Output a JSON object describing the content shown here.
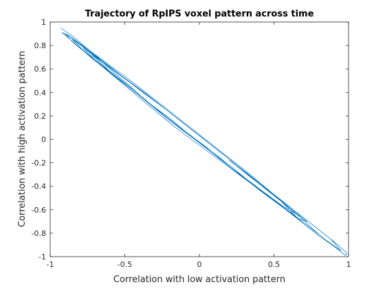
{
  "chart_data": {
    "type": "line",
    "title": "Trajectory of RpIPS voxel pattern across time",
    "xlabel": "Correlation with low activation pattern",
    "ylabel": "Correlation with high activation pattern",
    "xlim": [
      -1,
      1
    ],
    "ylim": [
      -1,
      1
    ],
    "xticks": [
      -1,
      -0.5,
      0,
      0.5,
      1
    ],
    "xtick_labels": [
      "-1",
      "-0.5",
      "0",
      "0.5",
      "1"
    ],
    "yticks": [
      -1,
      -0.8,
      -0.6,
      -0.4,
      -0.2,
      0,
      0.2,
      0.4,
      0.6,
      0.8,
      1
    ],
    "ytick_labels": [
      "-1",
      "-0.8",
      "-0.6",
      "-0.4",
      "-0.2",
      "0",
      "0.2",
      "0.4",
      "0.6",
      "0.8",
      "1"
    ],
    "grid": false,
    "line_color": "#0072BD",
    "series": [
      {
        "x": [
          -0.93,
          -0.85,
          -0.72,
          -0.6,
          -0.48,
          -0.35,
          -0.2,
          -0.05,
          0.1,
          0.25,
          0.4,
          0.55,
          0.65,
          0.72,
          0.62,
          0.48,
          0.32,
          0.15,
          0.0,
          -0.15,
          -0.3,
          -0.45,
          -0.6,
          -0.75,
          -0.88,
          -0.92,
          -0.8,
          -0.65,
          -0.5,
          -0.35,
          -0.18,
          0.0,
          0.18,
          0.35,
          0.5,
          0.6,
          0.7,
          0.8,
          0.9,
          0.98,
          0.99,
          0.9,
          0.75,
          0.6,
          0.45,
          0.3,
          0.12,
          -0.05,
          -0.22,
          -0.4,
          -0.55,
          -0.68,
          -0.8,
          -0.9,
          -0.85,
          -0.7,
          -0.52,
          -0.35,
          -0.15,
          0.05,
          0.22,
          0.4,
          0.55,
          0.68,
          0.58,
          0.42,
          0.25,
          0.08,
          -0.1,
          -0.28,
          -0.45,
          -0.6,
          -0.72,
          -0.6,
          -0.45,
          -0.28,
          -0.1,
          0.1,
          0.3,
          0.48,
          0.62,
          0.75,
          0.85,
          0.95,
          0.88,
          0.72,
          0.55,
          0.38,
          0.2,
          0.02,
          -0.16,
          -0.34,
          -0.5,
          -0.66,
          -0.78,
          -0.7,
          -0.55,
          -0.38,
          -0.2,
          0.0,
          0.2,
          0.38,
          0.52,
          0.65,
          0.55,
          0.38,
          0.2,
          0.02,
          -0.18,
          -0.36,
          -0.52,
          -0.65,
          -0.75,
          -0.85,
          -0.78,
          -0.62,
          -0.45,
          -0.28,
          -0.1,
          0.08,
          0.26,
          0.42,
          0.58,
          0.7,
          0.8,
          0.7,
          0.55,
          0.38,
          0.2
        ],
        "y": [
          0.95,
          0.88,
          0.74,
          0.6,
          0.47,
          0.32,
          0.18,
          0.02,
          -0.12,
          -0.27,
          -0.43,
          -0.57,
          -0.67,
          -0.7,
          -0.6,
          -0.45,
          -0.28,
          -0.11,
          0.04,
          0.19,
          0.34,
          0.49,
          0.63,
          0.77,
          0.89,
          0.91,
          0.78,
          0.62,
          0.46,
          0.3,
          0.12,
          -0.05,
          -0.22,
          -0.38,
          -0.52,
          -0.62,
          -0.72,
          -0.82,
          -0.91,
          -0.99,
          -0.97,
          -0.87,
          -0.72,
          -0.57,
          -0.42,
          -0.27,
          -0.09,
          0.08,
          0.25,
          0.42,
          0.57,
          0.7,
          0.81,
          0.9,
          0.83,
          0.67,
          0.49,
          0.32,
          0.12,
          -0.07,
          -0.25,
          -0.42,
          -0.56,
          -0.66,
          -0.56,
          -0.4,
          -0.22,
          -0.05,
          0.13,
          0.31,
          0.47,
          0.61,
          0.72,
          0.58,
          0.42,
          0.25,
          0.07,
          -0.13,
          -0.33,
          -0.5,
          -0.63,
          -0.76,
          -0.86,
          -0.95,
          -0.85,
          -0.69,
          -0.52,
          -0.35,
          -0.17,
          0.01,
          0.19,
          0.37,
          0.52,
          0.67,
          0.78,
          0.68,
          0.52,
          0.35,
          0.16,
          -0.03,
          -0.23,
          -0.4,
          -0.54,
          -0.66,
          -0.53,
          -0.35,
          -0.17,
          0.01,
          0.21,
          0.39,
          0.54,
          0.66,
          0.76,
          0.85,
          0.76,
          0.6,
          0.43,
          0.25,
          0.07,
          -0.11,
          -0.29,
          -0.45,
          -0.6,
          -0.71,
          -0.81,
          -0.69,
          -0.53,
          -0.36,
          -0.18
        ]
      }
    ]
  }
}
